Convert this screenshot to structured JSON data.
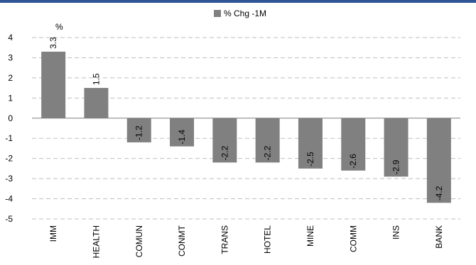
{
  "chart_data": {
    "type": "bar",
    "unit_label": "%",
    "categories": [
      "IMM",
      "HEALTH",
      "COMUN",
      "CONMT",
      "TRANS",
      "HOTEL",
      "MINE",
      "COMM",
      "INS",
      "BANK"
    ],
    "series": [
      {
        "name": "% Chg -1M",
        "values": [
          3.3,
          1.5,
          -1.2,
          -1.4,
          -2.2,
          -2.2,
          -2.5,
          -2.6,
          -2.9,
          -4.2
        ],
        "data_labels": [
          "3.3",
          "1.5",
          "-1.2",
          "-1.4",
          "-2.2",
          "-2.2",
          "-2.5",
          "-2.6",
          "-2.9",
          "-4.2"
        ]
      }
    ],
    "ylim": [
      -5,
      4
    ],
    "yticks": [
      4,
      3,
      2,
      1,
      0,
      -1,
      -2,
      -3,
      -4,
      -5
    ],
    "ytick_labels": [
      "4",
      "3",
      "2",
      "1",
      "0",
      "-1",
      "-2",
      "-3",
      "-4",
      "-5"
    ],
    "grid": true,
    "legend_position": "top-center",
    "colors": {
      "bar": "#808080",
      "grid": "#bfbfbf",
      "axis": "#7f7f7f",
      "border": "#2f5597"
    }
  }
}
